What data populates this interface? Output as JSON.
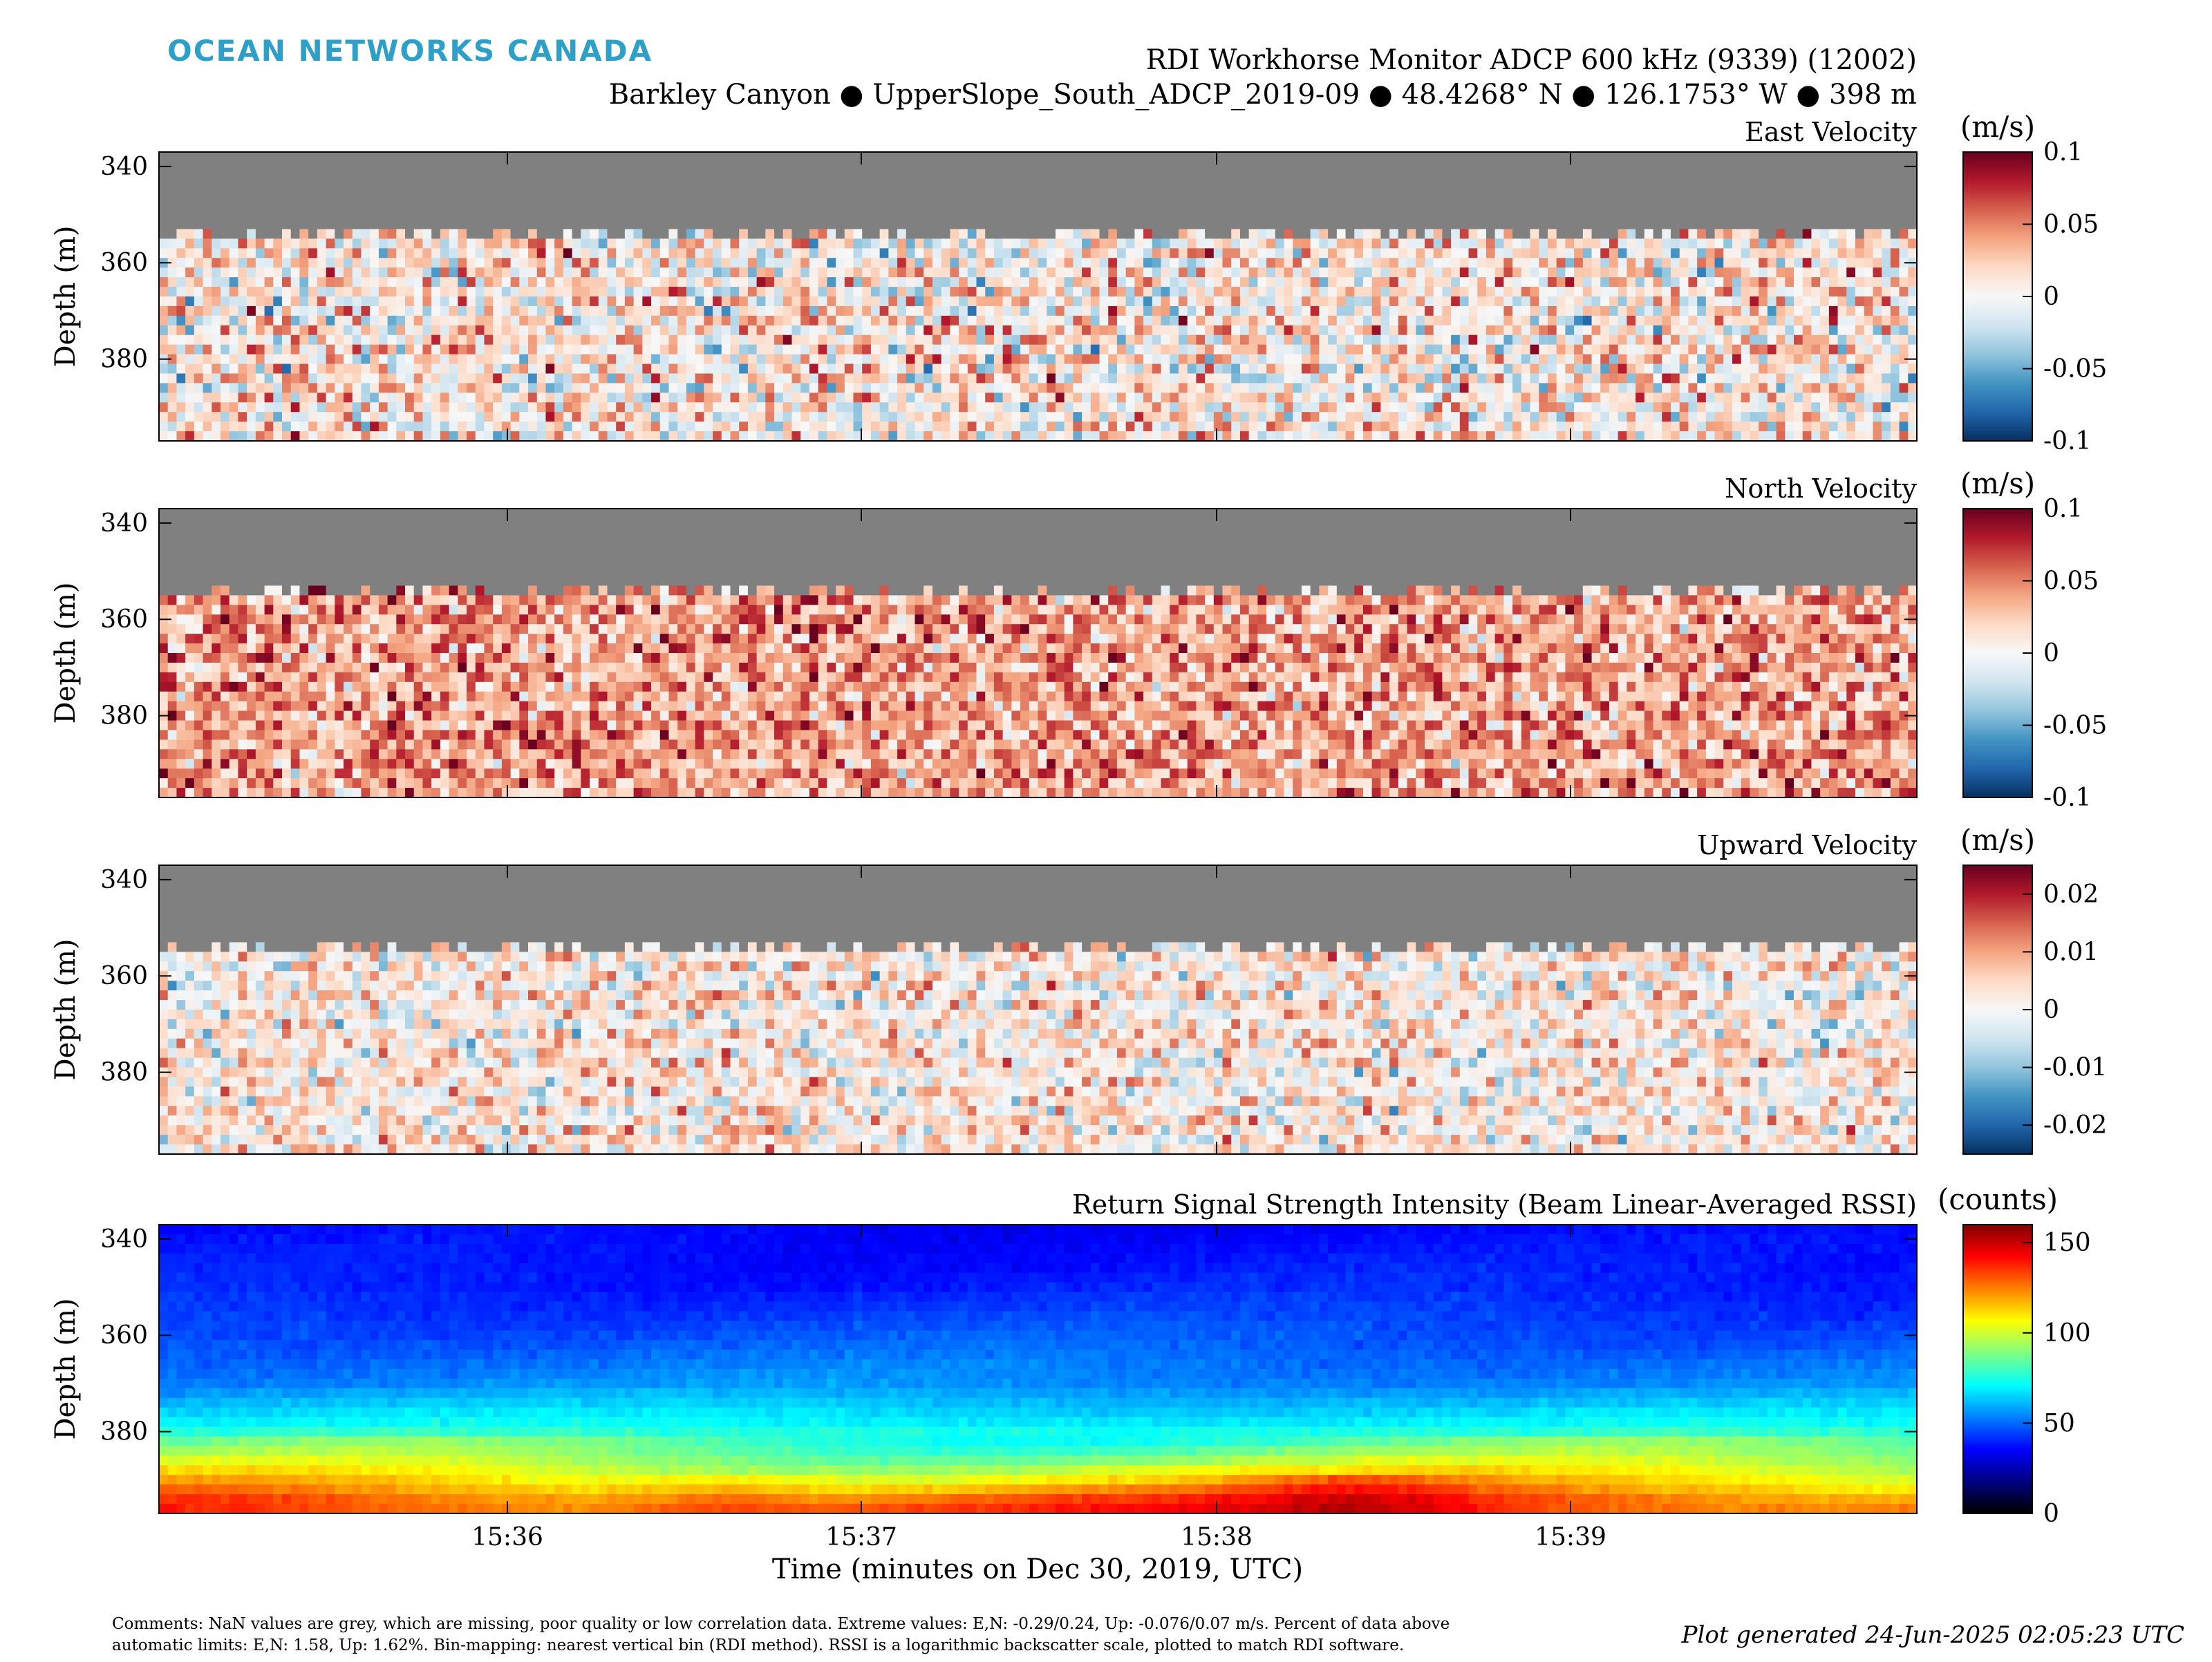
{
  "header": {
    "logo": "OCEAN NETWORKS CANADA",
    "title": "RDI Workhorse Monitor ADCP 600 kHz (9339) (12002)",
    "subtitle": "Barkley Canyon ● UpperSlope_South_ADCP_2019-09 ● 48.4268° N ● 126.1753° W ● 398 m"
  },
  "footer": {
    "comment_line1": "Comments: NaN values are grey, which are missing, poor quality or low correlation data. Extreme values: E,N: -0.29/0.24, Up: -0.076/0.07 m/s. Percent of data above",
    "comment_line2": "automatic limits: E,N: 1.58, Up: 1.62%. Bin-mapping: nearest vertical bin (RDI method). RSSI is a logarithmic backscatter scale, plotted to match RDI software.",
    "generated": "Plot generated 24-Jun-2025 02:05:23 UTC"
  },
  "colors": {
    "nan_grey": "#808080",
    "diverging": [
      "#053061",
      "#2166ac",
      "#4393c3",
      "#92c5de",
      "#d1e5f0",
      "#f7f7f7",
      "#fddbc7",
      "#f4a582",
      "#d6604d",
      "#b2182b",
      "#67001f"
    ],
    "jet": [
      "#000000",
      "#000080",
      "#0000ff",
      "#0080ff",
      "#00ffff",
      "#80ff80",
      "#ffff00",
      "#ff8000",
      "#ff0000",
      "#800000"
    ]
  },
  "chart_data": [
    {
      "type": "heatmap",
      "title": "East Velocity",
      "xlabel": "",
      "ylabel": "Depth (m)",
      "x_ticks": [
        "15:36",
        "15:37",
        "15:38",
        "15:39"
      ],
      "x_tick_labels_visible": false,
      "y_ticks": [
        340,
        360,
        380
      ],
      "ylim": [
        397,
        337
      ],
      "colorbar": {
        "unit": "(m/s)",
        "range": [
          -0.1,
          0.1
        ],
        "ticks": [
          "0.1",
          "0.05",
          "0",
          "-0.05",
          "-0.1"
        ],
        "colormap": "diverging"
      },
      "grey_top_depth_m": 353,
      "mean_value": 0.01,
      "value_spread": 0.06
    },
    {
      "type": "heatmap",
      "title": "North Velocity",
      "xlabel": "",
      "ylabel": "Depth (m)",
      "x_ticks": [
        "15:36",
        "15:37",
        "15:38",
        "15:39"
      ],
      "x_tick_labels_visible": false,
      "y_ticks": [
        340,
        360,
        380
      ],
      "ylim": [
        397,
        337
      ],
      "colorbar": {
        "unit": "(m/s)",
        "range": [
          -0.1,
          0.1
        ],
        "ticks": [
          "0.1",
          "0.05",
          "0",
          "-0.05",
          "-0.1"
        ],
        "colormap": "diverging"
      },
      "grey_top_depth_m": 353,
      "mean_value": 0.04,
      "value_spread": 0.05
    },
    {
      "type": "heatmap",
      "title": "Upward Velocity",
      "xlabel": "",
      "ylabel": "Depth (m)",
      "x_ticks": [
        "15:36",
        "15:37",
        "15:38",
        "15:39"
      ],
      "x_tick_labels_visible": false,
      "y_ticks": [
        340,
        360,
        380
      ],
      "ylim": [
        397,
        337
      ],
      "colorbar": {
        "unit": "(m/s)",
        "range": [
          -0.025,
          0.025
        ],
        "ticks": [
          "0.02",
          "0.01",
          "0",
          "-0.01",
          "-0.02"
        ],
        "colormap": "diverging"
      },
      "grey_top_depth_m": 353,
      "mean_value": 0.002,
      "value_spread": 0.012
    },
    {
      "type": "heatmap",
      "title": "Return Signal Strength Intensity (Beam Linear-Averaged RSSI)",
      "xlabel": "Time (minutes on Dec 30, 2019, UTC)",
      "ylabel": "Depth (m)",
      "x_ticks": [
        "15:36",
        "15:37",
        "15:38",
        "15:39"
      ],
      "x_tick_labels_visible": true,
      "y_ticks": [
        340,
        360,
        380
      ],
      "ylim": [
        397,
        337
      ],
      "colorbar": {
        "unit": "(counts)",
        "range": [
          0,
          160
        ],
        "ticks": [
          "150",
          "100",
          "50",
          "0"
        ],
        "colormap": "jet"
      },
      "profile": {
        "depth_m": [
          337,
          350,
          360,
          370,
          378,
          385,
          390,
          394,
          397
        ],
        "counts": [
          35,
          40,
          47,
          55,
          70,
          90,
          110,
          128,
          135
        ]
      }
    }
  ]
}
